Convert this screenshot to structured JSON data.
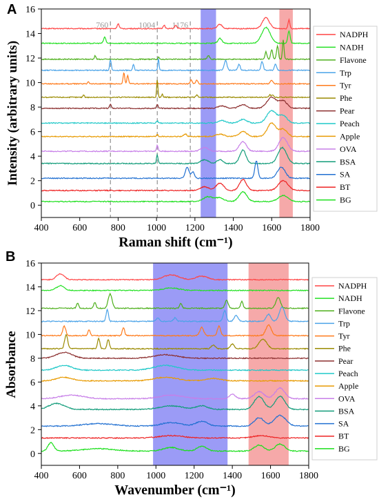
{
  "chart_data": [
    {
      "panel": "A",
      "type": "line",
      "xlabel": "Raman shift (cm⁻¹)",
      "ylabel": "Intensity (arbitrary units)",
      "xlim": [
        400,
        1800
      ],
      "ylim": [
        -1,
        16
      ],
      "xticks": [
        400,
        600,
        800,
        1000,
        1200,
        1400,
        1600,
        1800
      ],
      "yticks": [
        0,
        2,
        4,
        6,
        8,
        10,
        12,
        14,
        16
      ],
      "dashed_lines": [
        {
          "x": 760,
          "label": "760"
        },
        {
          "x": 1004,
          "label": "1004"
        },
        {
          "x": 1176,
          "label": "1176"
        }
      ],
      "bands": [
        {
          "from": 1230,
          "to": 1310,
          "color": "#8a8af5"
        },
        {
          "from": 1640,
          "to": 1710,
          "color": "#f59a9a"
        }
      ],
      "legend_position": "right",
      "series": [
        {
          "name": "NADPH",
          "color": "#ff4444",
          "offset": 14.4,
          "peaks": [
            [
              800,
              0.4,
              5
            ],
            [
              1040,
              0.3,
              5
            ],
            [
              1100,
              0.25,
              6
            ],
            [
              1330,
              0.35,
              12
            ],
            [
              1570,
              0.9,
              18
            ],
            [
              1690,
              0.7,
              5
            ]
          ]
        },
        {
          "name": "NADH",
          "color": "#22e022",
          "offset": 13.2,
          "peaks": [
            [
              730,
              0.5,
              6
            ],
            [
              1330,
              0.4,
              10
            ],
            [
              1570,
              1.3,
              22
            ],
            [
              1690,
              1.0,
              6
            ]
          ]
        },
        {
          "name": "Flavone",
          "color": "#4caf1a",
          "offset": 11.9,
          "peaks": [
            [
              680,
              0.3,
              4
            ],
            [
              1010,
              0.2,
              3
            ],
            [
              1270,
              0.3,
              6
            ],
            [
              1570,
              0.6,
              5
            ],
            [
              1600,
              0.8,
              5
            ],
            [
              1630,
              1.1,
              5
            ],
            [
              1660,
              1.6,
              4
            ]
          ]
        },
        {
          "name": "Trp",
          "color": "#4aa3e8",
          "offset": 11.0,
          "peaks": [
            [
              760,
              0.9,
              4
            ],
            [
              880,
              0.5,
              4
            ],
            [
              1010,
              1.0,
              3
            ],
            [
              1360,
              0.8,
              7
            ],
            [
              1430,
              0.5,
              6
            ],
            [
              1550,
              0.7,
              6
            ],
            [
              1620,
              0.5,
              6
            ]
          ]
        },
        {
          "name": "Tyr",
          "color": "#ff7a1a",
          "offset": 9.9,
          "peaks": [
            [
              645,
              0.2,
              4
            ],
            [
              830,
              0.9,
              4
            ],
            [
              850,
              0.7,
              4
            ],
            [
              1180,
              0.3,
              5
            ],
            [
              1210,
              0.3,
              5
            ],
            [
              1600,
              0.3,
              6
            ]
          ]
        },
        {
          "name": "Phe",
          "color": "#9a8a00",
          "offset": 8.8,
          "peaks": [
            [
              620,
              0.2,
              4
            ],
            [
              1004,
              1.5,
              3
            ],
            [
              1030,
              0.3,
              3
            ],
            [
              1210,
              0.2,
              5
            ],
            [
              1590,
              0.2,
              5
            ],
            [
              1605,
              0.2,
              5
            ]
          ]
        },
        {
          "name": "Pear",
          "color": "#8b2e2e",
          "offset": 7.9,
          "peaks": [
            [
              760,
              0.3,
              5
            ],
            [
              1004,
              0.3,
              4
            ],
            [
              1340,
              0.2,
              20
            ],
            [
              1450,
              0.3,
              20
            ],
            [
              1600,
              0.9,
              25
            ],
            [
              1660,
              0.6,
              20
            ]
          ]
        },
        {
          "name": "Peach",
          "color": "#1fc8c8",
          "offset": 6.7,
          "peaks": [
            [
              1004,
              0.2,
              4
            ],
            [
              1340,
              0.2,
              20
            ],
            [
              1450,
              0.3,
              20
            ],
            [
              1600,
              1.0,
              25
            ],
            [
              1660,
              0.6,
              20
            ]
          ]
        },
        {
          "name": "Apple",
          "color": "#e89a00",
          "offset": 5.6,
          "peaks": [
            [
              1004,
              0.2,
              4
            ],
            [
              1150,
              0.2,
              8
            ],
            [
              1330,
              0.2,
              20
            ],
            [
              1450,
              0.4,
              20
            ],
            [
              1600,
              1.1,
              22
            ],
            [
              1660,
              0.6,
              20
            ]
          ]
        },
        {
          "name": "OVA",
          "color": "#c77ee8",
          "offset": 4.4,
          "peaks": [
            [
              1004,
              0.5,
              4
            ],
            [
              1250,
              0.3,
              20
            ],
            [
              1450,
              0.8,
              18
            ],
            [
              1660,
              1.1,
              22
            ]
          ]
        },
        {
          "name": "BSA",
          "color": "#129c7a",
          "offset": 3.4,
          "peaks": [
            [
              1004,
              0.7,
              4
            ],
            [
              1250,
              0.3,
              20
            ],
            [
              1330,
              0.3,
              15
            ],
            [
              1450,
              1.1,
              16
            ],
            [
              1655,
              1.3,
              22
            ]
          ]
        },
        {
          "name": "SA",
          "color": "#1f6fd1",
          "offset": 2.2,
          "peaks": [
            [
              1160,
              0.9,
              10
            ],
            [
              1190,
              0.5,
              8
            ],
            [
              1520,
              1.4,
              8
            ],
            [
              1650,
              0.9,
              20
            ]
          ]
        },
        {
          "name": "BT",
          "color": "#ee2222",
          "offset": 1.2,
          "peaks": [
            [
              1250,
              0.3,
              22
            ],
            [
              1330,
              0.6,
              20
            ],
            [
              1450,
              0.9,
              18
            ],
            [
              1660,
              0.8,
              25
            ]
          ]
        },
        {
          "name": "BG",
          "color": "#1adf1a",
          "offset": 0.3,
          "peaks": [
            [
              1270,
              0.4,
              25
            ],
            [
              1330,
              0.3,
              20
            ],
            [
              1450,
              0.8,
              20
            ],
            [
              1660,
              0.5,
              25
            ]
          ]
        }
      ]
    },
    {
      "panel": "B",
      "type": "line",
      "xlabel": "Wavenumber (cm⁻¹)",
      "ylabel": "Absorbance",
      "xlim": [
        400,
        1800
      ],
      "ylim": [
        -1,
        16
      ],
      "xticks": [
        400,
        600,
        800,
        1000,
        1200,
        1400,
        1600,
        1800
      ],
      "yticks": [
        0,
        2,
        4,
        6,
        8,
        10,
        12,
        14,
        16
      ],
      "bands": [
        {
          "from": 985,
          "to": 1375,
          "color": "#8a8af5"
        },
        {
          "from": 1485,
          "to": 1695,
          "color": "#f59a9a"
        }
      ],
      "legend_position": "right",
      "series": [
        {
          "name": "NADPH",
          "color": "#ff4444",
          "offset": 14.6,
          "peaks": [
            [
              500,
              0.5,
              20
            ],
            [
              1080,
              0.4,
              40
            ],
            [
              1240,
              0.3,
              30
            ]
          ]
        },
        {
          "name": "NADH",
          "color": "#22e022",
          "offset": 13.7,
          "peaks": [
            [
              500,
              0.4,
              20
            ],
            [
              1080,
              0.2,
              40
            ]
          ]
        },
        {
          "name": "Flavone",
          "color": "#4caf1a",
          "offset": 12.2,
          "peaks": [
            [
              590,
              0.4,
              6
            ],
            [
              680,
              0.5,
              6
            ],
            [
              760,
              1.2,
              10
            ],
            [
              1130,
              0.4,
              6
            ],
            [
              1370,
              0.7,
              8
            ],
            [
              1450,
              0.6,
              6
            ],
            [
              1640,
              0.9,
              12
            ]
          ]
        },
        {
          "name": "Trp",
          "color": "#4aa3e8",
          "offset": 11.1,
          "peaks": [
            [
              745,
              1.0,
              6
            ],
            [
              1010,
              0.3,
              8
            ],
            [
              1100,
              0.3,
              8
            ],
            [
              1360,
              0.9,
              8
            ],
            [
              1420,
              0.5,
              10
            ],
            [
              1590,
              0.6,
              12
            ],
            [
              1660,
              1.2,
              14
            ]
          ]
        },
        {
          "name": "Tyr",
          "color": "#ff7a1a",
          "offset": 9.9,
          "peaks": [
            [
              520,
              0.8,
              8
            ],
            [
              650,
              0.5,
              6
            ],
            [
              830,
              0.7,
              6
            ],
            [
              1240,
              0.7,
              10
            ],
            [
              1330,
              0.8,
              8
            ],
            [
              1590,
              0.9,
              14
            ]
          ]
        },
        {
          "name": "Phe",
          "color": "#9a8a00",
          "offset": 8.8,
          "peaks": [
            [
              530,
              1.2,
              8
            ],
            [
              700,
              0.9,
              6
            ],
            [
              750,
              0.8,
              6
            ],
            [
              1300,
              0.3,
              10
            ],
            [
              1400,
              0.4,
              10
            ],
            [
              1560,
              0.8,
              20
            ]
          ]
        },
        {
          "name": "Pear",
          "color": "#8b2e2e",
          "offset": 8.0,
          "peaks": [
            [
              520,
              0.5,
              40
            ],
            [
              1050,
              0.3,
              60
            ]
          ]
        },
        {
          "name": "Peach",
          "color": "#1fc8c8",
          "offset": 7.0,
          "peaks": [
            [
              520,
              0.4,
              40
            ],
            [
              1050,
              0.4,
              60
            ]
          ]
        },
        {
          "name": "Apple",
          "color": "#e89a00",
          "offset": 6.1,
          "peaks": [
            [
              520,
              0.3,
              40
            ],
            [
              1050,
              0.3,
              60
            ],
            [
              1300,
              0.2,
              40
            ]
          ]
        },
        {
          "name": "OVA",
          "color": "#c77ee8",
          "offset": 4.6,
          "peaks": [
            [
              560,
              0.3,
              60
            ],
            [
              1080,
              0.3,
              60
            ],
            [
              1400,
              0.4,
              15
            ],
            [
              1540,
              0.6,
              25
            ],
            [
              1650,
              0.9,
              25
            ]
          ]
        },
        {
          "name": "BSA",
          "color": "#129c7a",
          "offset": 3.7,
          "peaks": [
            [
              480,
              0.5,
              40
            ],
            [
              1080,
              0.3,
              60
            ],
            [
              1240,
              0.3,
              30
            ],
            [
              1540,
              1.1,
              25
            ],
            [
              1650,
              1.1,
              25
            ]
          ]
        },
        {
          "name": "SA",
          "color": "#1f6fd1",
          "offset": 2.3,
          "peaks": [
            [
              700,
              0.2,
              80
            ],
            [
              1080,
              0.3,
              50
            ],
            [
              1240,
              0.4,
              30
            ],
            [
              1540,
              0.7,
              25
            ],
            [
              1650,
              0.9,
              30
            ]
          ]
        },
        {
          "name": "BT",
          "color": "#ee2222",
          "offset": 1.3,
          "peaks": [
            [
              1080,
              0.2,
              60
            ],
            [
              1550,
              0.2,
              40
            ]
          ]
        },
        {
          "name": "BG",
          "color": "#1adf1a",
          "offset": 0.2,
          "peaks": [
            [
              450,
              0.7,
              15
            ],
            [
              700,
              0.2,
              80
            ],
            [
              1080,
              0.3,
              40
            ],
            [
              1240,
              0.4,
              25
            ],
            [
              1540,
              0.5,
              25
            ],
            [
              1650,
              0.6,
              25
            ]
          ]
        }
      ]
    }
  ]
}
